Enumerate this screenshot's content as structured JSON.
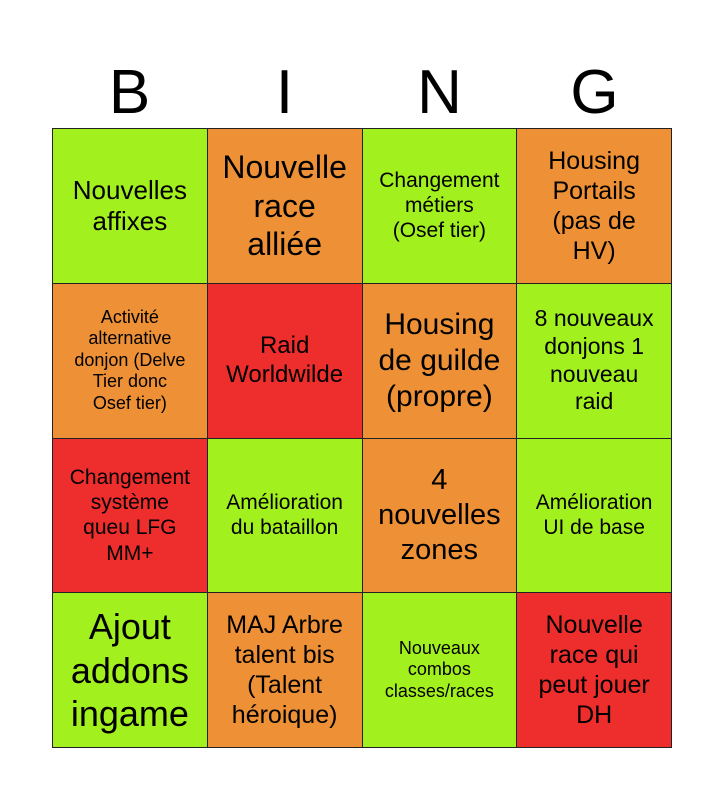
{
  "header": [
    "B",
    "I",
    "N",
    "G"
  ],
  "colors": {
    "green": "#a3f01f",
    "orange": "#ee9035",
    "red": "#ee2d2d"
  },
  "cells": [
    {
      "lines": [
        "Nouvelles",
        "affixes"
      ],
      "color": "green",
      "size": 26
    },
    {
      "lines": [
        "Nouvelle",
        "race",
        "alliée"
      ],
      "color": "orange",
      "size": 32
    },
    {
      "lines": [
        "Changement",
        "métiers",
        "(Osef tier)"
      ],
      "color": "green",
      "size": 21
    },
    {
      "lines": [
        "Housing",
        "Portails",
        "(pas de",
        "HV)"
      ],
      "color": "orange",
      "size": 25
    },
    {
      "lines": [
        "Activité",
        "alternative",
        "donjon (Delve",
        "Tier donc",
        "Osef tier)"
      ],
      "color": "orange",
      "size": 18
    },
    {
      "lines": [
        "Raid",
        "Worldwilde"
      ],
      "color": "red",
      "size": 24
    },
    {
      "lines": [
        "Housing",
        "de guilde",
        "(propre)"
      ],
      "color": "orange",
      "size": 30
    },
    {
      "lines": [
        "8 nouveaux",
        "donjons 1",
        "nouveau",
        "raid"
      ],
      "color": "green",
      "size": 23
    },
    {
      "lines": [
        "Changement",
        "système",
        "queu LFG",
        "MM+"
      ],
      "color": "red",
      "size": 21
    },
    {
      "lines": [
        "Amélioration",
        "du bataillon"
      ],
      "color": "green",
      "size": 21
    },
    {
      "lines": [
        "4",
        "nouvelles",
        "zones"
      ],
      "color": "orange",
      "size": 29
    },
    {
      "lines": [
        "Amélioration",
        "UI de base"
      ],
      "color": "green",
      "size": 21
    },
    {
      "lines": [
        "Ajout",
        "addons",
        "ingame"
      ],
      "color": "green",
      "size": 36
    },
    {
      "lines": [
        "MAJ Arbre",
        "talent bis",
        "(Talent",
        "héroique)"
      ],
      "color": "orange",
      "size": 25
    },
    {
      "lines": [
        "Nouveaux",
        "combos",
        "classes/races"
      ],
      "color": "green",
      "size": 18
    },
    {
      "lines": [
        "Nouvelle",
        "race qui",
        "peut jouer",
        "DH"
      ],
      "color": "red",
      "size": 25
    }
  ]
}
